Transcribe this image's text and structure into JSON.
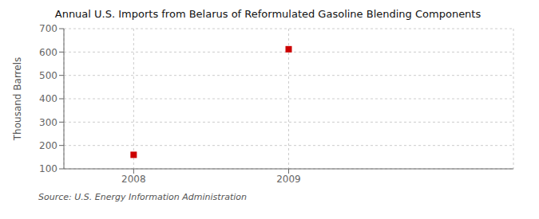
{
  "chart_data": {
    "type": "scatter",
    "title": "Annual U.S. Imports from Belarus of Reformulated Gasoline Blending Components",
    "ylabel": "Thousand Barrels",
    "annotation": "Source: U.S. Energy Information Administration",
    "x": [
      2008,
      2009
    ],
    "values": [
      160,
      612
    ],
    "xlim": [
      2007.55,
      2010.45
    ],
    "xticks": [
      2008,
      2009
    ],
    "ylim": [
      100,
      700
    ],
    "yticks": [
      100,
      200,
      300,
      400,
      500,
      600,
      700
    ],
    "color": "#cc0000",
    "marker": "square",
    "grid": true
  }
}
